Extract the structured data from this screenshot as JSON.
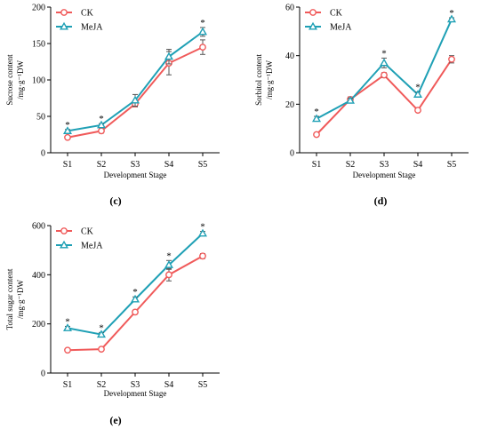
{
  "colors": {
    "CK": "#f05a5a",
    "MeJA": "#1fa0b5"
  },
  "chart_data": [
    {
      "panel": "(c)",
      "type": "line",
      "categories": [
        "S1",
        "S2",
        "S3",
        "S4",
        "S5"
      ],
      "series": [
        {
          "name": "CK",
          "marker": "circle",
          "values": [
            21,
            30,
            67,
            123,
            145
          ],
          "errors": [
            2,
            3,
            4,
            16,
            10
          ]
        },
        {
          "name": "MeJA",
          "marker": "triangle",
          "values": [
            30,
            38,
            72,
            132,
            166
          ],
          "errors": [
            2,
            2,
            8,
            10,
            6
          ]
        }
      ],
      "stars": [
        true,
        true,
        false,
        false,
        true
      ],
      "ylim": [
        0,
        200
      ],
      "yticks": [
        0,
        50,
        100,
        150,
        200
      ],
      "ylabel_line1": "Sucrose content",
      "ylabel_line2": "/mg·g⁻¹DW",
      "xlabel": "Development Stage"
    },
    {
      "panel": "(d)",
      "type": "line",
      "categories": [
        "S1",
        "S2",
        "S3",
        "S4",
        "S5"
      ],
      "series": [
        {
          "name": "CK",
          "marker": "circle",
          "values": [
            7.5,
            22,
            32,
            17.5,
            38.5
          ],
          "errors": [
            0.5,
            1,
            1,
            0.6,
            1.5
          ]
        },
        {
          "name": "MeJA",
          "marker": "triangle",
          "values": [
            14,
            21.5,
            37,
            24,
            55
          ],
          "errors": [
            1,
            1,
            2,
            1,
            0.6
          ]
        }
      ],
      "stars": [
        true,
        false,
        true,
        true,
        true
      ],
      "ylim": [
        0,
        60
      ],
      "yticks": [
        0,
        20,
        40,
        60
      ],
      "ylabel_line1": "Sorbitol content",
      "ylabel_line2": "/mg·g⁻¹DW",
      "xlabel": "Development Stage"
    },
    {
      "panel": "(e)",
      "type": "line",
      "categories": [
        "S1",
        "S2",
        "S3",
        "S4",
        "S5"
      ],
      "series": [
        {
          "name": "CK",
          "marker": "circle",
          "values": [
            93,
            97,
            248,
            400,
            476
          ],
          "errors": [
            5,
            5,
            8,
            25,
            10
          ]
        },
        {
          "name": "MeJA",
          "marker": "triangle",
          "values": [
            183,
            157,
            300,
            440,
            568
          ],
          "errors": [
            7,
            8,
            10,
            18,
            8
          ]
        }
      ],
      "stars": [
        true,
        true,
        true,
        true,
        true
      ],
      "ylim": [
        0,
        600
      ],
      "yticks": [
        0,
        200,
        400,
        600
      ],
      "ylabel_line1": "Total sugar content",
      "ylabel_line2": "/mg·g⁻¹DW",
      "xlabel": "Development Stage"
    }
  ]
}
